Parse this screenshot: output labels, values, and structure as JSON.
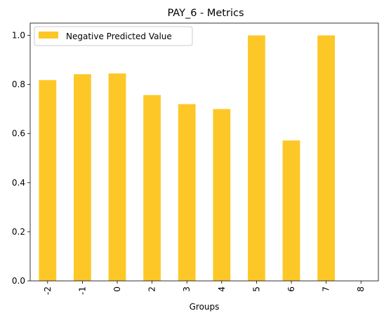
{
  "chart_data": {
    "type": "bar",
    "title": "PAY_6 - Metrics",
    "xlabel": "Groups",
    "ylabel": "",
    "categories": [
      "-2",
      "-1",
      "0",
      "2",
      "3",
      "4",
      "5",
      "6",
      "7",
      "8"
    ],
    "series": [
      {
        "name": "Negative Predicted Value",
        "color": "#fdc827",
        "values": [
          0.818,
          0.842,
          0.845,
          0.757,
          0.72,
          0.7,
          1.0,
          0.572,
          1.0,
          0.0
        ]
      }
    ],
    "ylim": [
      0,
      1.05
    ],
    "yticks": [
      "0.0",
      "0.2",
      "0.4",
      "0.6",
      "0.8",
      "1.0"
    ],
    "grid": false,
    "legend_position": "top-left"
  }
}
